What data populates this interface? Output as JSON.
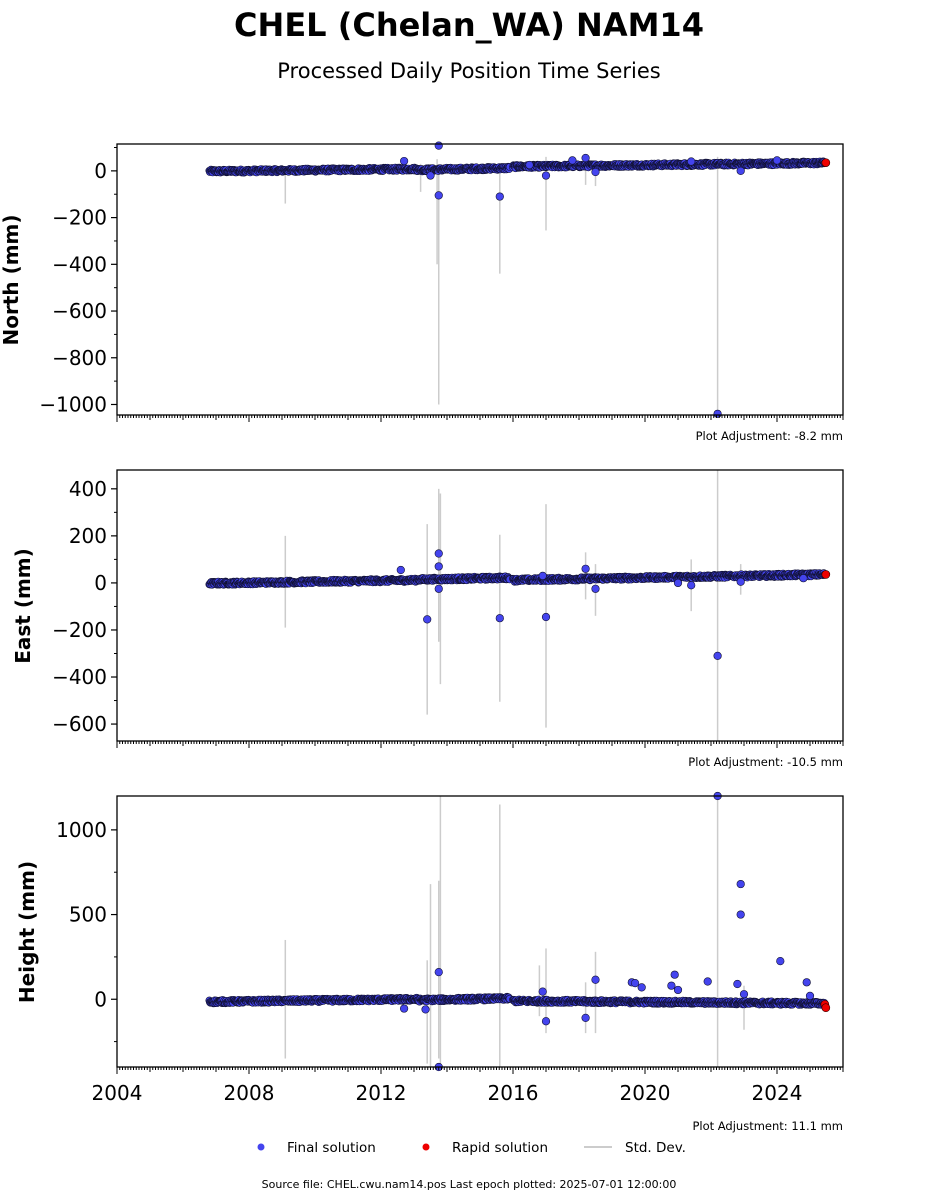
{
  "figure": {
    "title": "CHEL (Chelan_WA) NAM14",
    "subtitle": "Processed Daily Position Time Series",
    "footer": "Source file: CHEL.cwu.nam14.pos  Last epoch plotted: 2025-07-01 12:00:00"
  },
  "legend": {
    "final_label": "Final solution",
    "rapid_label": "Rapid solution",
    "stddev_label": "Std. Dev."
  },
  "colors": {
    "final": "#4444ee",
    "final_edge": "#111133",
    "rapid": "#ee0000",
    "stddev": "#cccccc",
    "axis": "#000000"
  },
  "chart_data": [
    {
      "type": "scatter",
      "id": "north",
      "ylabel": "North (mm)",
      "adjustment": "Plot Adjustment: -8.2 mm",
      "xlim": [
        2004,
        2026
      ],
      "ylim": [
        -1045,
        115
      ],
      "yticks": [
        0,
        -200,
        -400,
        -600,
        -800,
        -1000
      ],
      "ytick_labels": [
        "0",
        "−200",
        "−400",
        "−600",
        "−800",
        "−1000"
      ],
      "segments": [
        {
          "x0": 2006.8,
          "x1": 2013.1,
          "y0": -2,
          "y1": 8
        },
        {
          "x0": 2013.1,
          "x1": 2015.9,
          "y0": 4,
          "y1": 12
        },
        {
          "x0": 2016.0,
          "x1": 2025.45,
          "y0": 18,
          "y1": 34
        }
      ],
      "outliers": [
        [
          2012.7,
          42
        ],
        [
          2013.5,
          -20
        ],
        [
          2013.75,
          108
        ],
        [
          2013.75,
          -105
        ],
        [
          2015.6,
          -110
        ],
        [
          2016.5,
          25
        ],
        [
          2017.0,
          -20
        ],
        [
          2017.8,
          45
        ],
        [
          2018.2,
          55
        ],
        [
          2018.5,
          -5
        ],
        [
          2021.4,
          40
        ],
        [
          2022.2,
          -1040
        ],
        [
          2022.9,
          0
        ],
        [
          2024.0,
          45
        ]
      ],
      "errorbars": [
        [
          2009.1,
          20,
          -140
        ],
        [
          2013.2,
          30,
          -90
        ],
        [
          2013.7,
          50,
          -400
        ],
        [
          2013.75,
          20,
          -1000
        ],
        [
          2015.6,
          0,
          -440
        ],
        [
          2017.0,
          60,
          -255
        ],
        [
          2018.2,
          50,
          -60
        ],
        [
          2018.5,
          40,
          -65
        ],
        [
          2022.2,
          60,
          -1045
        ]
      ],
      "rapid": [
        [
          2025.48,
          35
        ]
      ]
    },
    {
      "type": "scatter",
      "id": "east",
      "ylabel": "East (mm)",
      "adjustment": "Plot Adjustment: -10.5 mm",
      "xlim": [
        2004,
        2026
      ],
      "ylim": [
        -672,
        480
      ],
      "yticks": [
        400,
        200,
        0,
        -200,
        -400,
        -600
      ],
      "ytick_labels": [
        "400",
        "200",
        "0",
        "−200",
        "−400",
        "−600"
      ],
      "segments": [
        {
          "x0": 2006.8,
          "x1": 2013.1,
          "y0": -2,
          "y1": 12
        },
        {
          "x0": 2013.1,
          "x1": 2015.9,
          "y0": 14,
          "y1": 22
        },
        {
          "x0": 2016.0,
          "x1": 2025.45,
          "y0": 12,
          "y1": 36
        }
      ],
      "outliers": [
        [
          2012.6,
          55
        ],
        [
          2013.4,
          -155
        ],
        [
          2013.75,
          125
        ],
        [
          2013.75,
          70
        ],
        [
          2013.75,
          -25
        ],
        [
          2015.6,
          -150
        ],
        [
          2017.0,
          -145
        ],
        [
          2016.9,
          30
        ],
        [
          2018.2,
          60
        ],
        [
          2018.5,
          -25
        ],
        [
          2021.0,
          0
        ],
        [
          2021.4,
          -10
        ],
        [
          2022.2,
          -310
        ],
        [
          2022.9,
          5
        ],
        [
          2024.8,
          20
        ]
      ],
      "errorbars": [
        [
          2009.1,
          200,
          -190
        ],
        [
          2013.4,
          250,
          -560
        ],
        [
          2013.75,
          400,
          -250
        ],
        [
          2013.8,
          380,
          -430
        ],
        [
          2015.6,
          205,
          -505
        ],
        [
          2017.0,
          335,
          -615
        ],
        [
          2018.2,
          130,
          -70
        ],
        [
          2018.5,
          80,
          -140
        ],
        [
          2021.4,
          100,
          -120
        ],
        [
          2022.2,
          480,
          -672
        ],
        [
          2022.9,
          80,
          -50
        ]
      ],
      "rapid": [
        [
          2025.48,
          36
        ]
      ]
    },
    {
      "type": "scatter",
      "id": "height",
      "ylabel": "Height (mm)",
      "adjustment": "Plot Adjustment: 11.1 mm",
      "xlim": [
        2004,
        2026
      ],
      "ylim": [
        -400,
        1200
      ],
      "xticks": [
        2004,
        2008,
        2012,
        2016,
        2020,
        2024
      ],
      "xtick_labels": [
        "2004",
        "2008",
        "2012",
        "2016",
        "2020",
        "2024"
      ],
      "yticks": [
        1000,
        500,
        0
      ],
      "ytick_labels": [
        "1000",
        "500",
        "0"
      ],
      "segments": [
        {
          "x0": 2006.8,
          "x1": 2013.1,
          "y0": -15,
          "y1": 0
        },
        {
          "x0": 2013.1,
          "x1": 2015.9,
          "y0": -5,
          "y1": 5
        },
        {
          "x0": 2016.0,
          "x1": 2025.45,
          "y0": -10,
          "y1": -25
        }
      ],
      "outliers": [
        [
          2012.7,
          -55
        ],
        [
          2013.35,
          -60
        ],
        [
          2013.75,
          160
        ],
        [
          2013.75,
          -400
        ],
        [
          2016.9,
          45
        ],
        [
          2017.0,
          -130
        ],
        [
          2018.2,
          -110
        ],
        [
          2018.5,
          115
        ],
        [
          2019.6,
          100
        ],
        [
          2019.7,
          95
        ],
        [
          2019.9,
          70
        ],
        [
          2020.9,
          145
        ],
        [
          2020.8,
          80
        ],
        [
          2021.0,
          55
        ],
        [
          2021.9,
          105
        ],
        [
          2022.2,
          1200
        ],
        [
          2022.8,
          90
        ],
        [
          2022.9,
          680
        ],
        [
          2022.9,
          500
        ],
        [
          2023.0,
          30
        ],
        [
          2024.1,
          225
        ],
        [
          2024.9,
          100
        ],
        [
          2025.0,
          20
        ]
      ],
      "errorbars": [
        [
          2009.1,
          350,
          -350
        ],
        [
          2013.4,
          230,
          -380
        ],
        [
          2013.5,
          680,
          -400
        ],
        [
          2013.75,
          700,
          -350
        ],
        [
          2013.8,
          1200,
          -400
        ],
        [
          2015.6,
          1150,
          -400
        ],
        [
          2016.8,
          200,
          -100
        ],
        [
          2017.0,
          300,
          -200
        ],
        [
          2018.2,
          100,
          -200
        ],
        [
          2018.5,
          280,
          -200
        ],
        [
          2022.2,
          1200,
          -400
        ],
        [
          2023.0,
          80,
          -180
        ]
      ],
      "rapid": [
        [
          2025.45,
          -30
        ],
        [
          2025.48,
          -50
        ]
      ]
    }
  ]
}
